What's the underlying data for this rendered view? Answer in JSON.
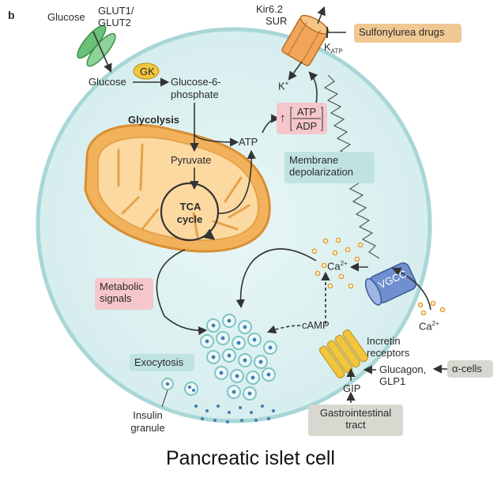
{
  "panel_letter": "b",
  "labels": {
    "glucose_top": "Glucose",
    "glut_line1": "GLUT1/",
    "glut_line2": "GLUT2",
    "glucose_inner": "Glucose",
    "gk": "GK",
    "g6p_line1": "Glucose-6-",
    "g6p_line2": "phosphate",
    "glycolysis": "Glycolysis",
    "pyruvate": "Pyruvate",
    "atp": "ATP",
    "tca_line1": "TCA",
    "tca_line2": "cycle",
    "kir": "Kir6.2",
    "sur": "SUR",
    "katp_k": "K",
    "katp_sub": "ATP",
    "kplus": "K",
    "kplus_sup": "+",
    "ratio_up": "↑",
    "ratio_num": "ATP",
    "ratio_den": "ADP",
    "ca_inner": "Ca",
    "ca_inner_sup": "2+",
    "ca_outer": "Ca",
    "ca_outer_sup": "2+",
    "vgcc": "VGCC",
    "camp": "cAMP",
    "incretin_line1": "Incretin",
    "incretin_line2": "receptors",
    "glucagon_line1": "Glucagon,",
    "glucagon_line2": "GLP1",
    "gip": "GIP",
    "insulin_line1": "Insulin",
    "insulin_line2": "granule"
  },
  "boxes": {
    "sulfonylurea": "Sulfonylurea drugs",
    "membrane_line1": "Membrane",
    "membrane_line2": "depolarization",
    "metabolic_line1": "Metabolic",
    "metabolic_line2": "signals",
    "exocytosis": "Exocytosis",
    "alpha_cells": "α-cells",
    "gi_line1": "Gastrointestinal",
    "gi_line2": "tract"
  },
  "caption": "Pancreatic islet cell",
  "colors": {
    "cell_fill": "#dff1f1",
    "cell_stroke": "#a9d6d6",
    "mito_fill": "#f2b25c",
    "mito_inner": "#fbd9a1",
    "glut": "#6cc17a",
    "katp_channel": "#f0a55b",
    "vgcc": "#6f8fcf",
    "incretin": "#f2c53d",
    "teal_box": "#bfe3e2",
    "pink_box": "#f5c7cb",
    "tan_box": "#f0c893",
    "grey_box": "#d8d8d0",
    "granule_dot": "#3f7fb0",
    "calcium_dot": "#e6a22a"
  }
}
